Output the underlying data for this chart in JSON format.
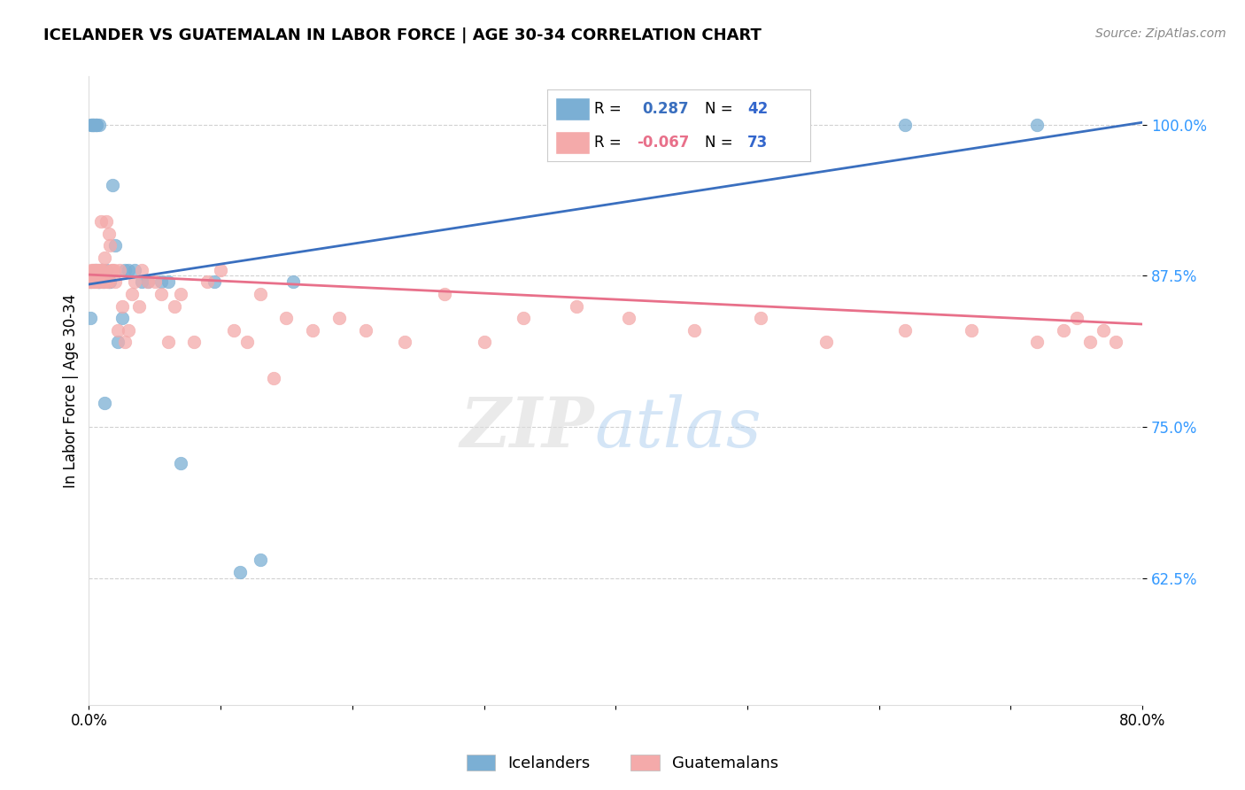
{
  "title": "ICELANDER VS GUATEMALAN IN LABOR FORCE | AGE 30-34 CORRELATION CHART",
  "source": "Source: ZipAtlas.com",
  "ylabel": "In Labor Force | Age 30-34",
  "xlim": [
    0.0,
    0.8
  ],
  "ylim": [
    0.52,
    1.04
  ],
  "xticks": [
    0.0,
    0.1,
    0.2,
    0.3,
    0.4,
    0.5,
    0.6,
    0.7,
    0.8
  ],
  "xticklabels": [
    "0.0%",
    "",
    "",
    "",
    "",
    "",
    "",
    "",
    "80.0%"
  ],
  "yticks": [
    0.625,
    0.75,
    0.875,
    1.0
  ],
  "yticklabels": [
    "62.5%",
    "75.0%",
    "87.5%",
    "100.0%"
  ],
  "blue_R": 0.287,
  "blue_N": 42,
  "pink_R": -0.067,
  "pink_N": 73,
  "blue_color": "#7BAFD4",
  "pink_color": "#F4AAAA",
  "blue_line_color": "#3A6FBF",
  "pink_line_color": "#E8708A",
  "icelander_x": [
    0.001,
    0.001,
    0.002,
    0.002,
    0.003,
    0.003,
    0.004,
    0.004,
    0.005,
    0.005,
    0.006,
    0.006,
    0.007,
    0.007,
    0.008,
    0.008,
    0.009,
    0.01,
    0.01,
    0.011,
    0.012,
    0.013,
    0.015,
    0.016,
    0.018,
    0.02,
    0.022,
    0.025,
    0.027,
    0.03,
    0.035,
    0.04,
    0.045,
    0.055,
    0.06,
    0.07,
    0.095,
    0.115,
    0.13,
    0.155,
    0.62,
    0.72
  ],
  "icelander_y": [
    0.87,
    0.84,
    1.0,
    1.0,
    1.0,
    1.0,
    1.0,
    0.87,
    0.88,
    1.0,
    1.0,
    1.0,
    0.87,
    0.87,
    1.0,
    0.87,
    0.88,
    0.88,
    0.88,
    0.87,
    0.77,
    0.88,
    0.87,
    0.87,
    0.95,
    0.9,
    0.82,
    0.84,
    0.88,
    0.88,
    0.88,
    0.87,
    0.87,
    0.87,
    0.87,
    0.72,
    0.87,
    0.63,
    0.64,
    0.87,
    1.0,
    1.0
  ],
  "guatemalan_x": [
    0.001,
    0.001,
    0.002,
    0.002,
    0.003,
    0.003,
    0.004,
    0.005,
    0.005,
    0.006,
    0.006,
    0.007,
    0.008,
    0.008,
    0.009,
    0.009,
    0.01,
    0.01,
    0.011,
    0.012,
    0.012,
    0.013,
    0.014,
    0.015,
    0.015,
    0.016,
    0.017,
    0.018,
    0.019,
    0.02,
    0.022,
    0.023,
    0.025,
    0.027,
    0.03,
    0.033,
    0.035,
    0.038,
    0.04,
    0.045,
    0.05,
    0.055,
    0.06,
    0.065,
    0.07,
    0.08,
    0.09,
    0.1,
    0.11,
    0.12,
    0.13,
    0.14,
    0.15,
    0.17,
    0.19,
    0.21,
    0.24,
    0.27,
    0.3,
    0.33,
    0.37,
    0.41,
    0.46,
    0.51,
    0.56,
    0.62,
    0.67,
    0.72,
    0.74,
    0.75,
    0.76,
    0.77,
    0.78
  ],
  "guatemalan_y": [
    0.87,
    0.87,
    0.88,
    0.87,
    0.88,
    0.87,
    0.88,
    0.88,
    0.87,
    0.88,
    0.87,
    0.88,
    0.88,
    0.87,
    0.92,
    0.88,
    0.87,
    0.88,
    0.87,
    0.88,
    0.89,
    0.92,
    0.87,
    0.91,
    0.87,
    0.9,
    0.88,
    0.88,
    0.88,
    0.87,
    0.83,
    0.88,
    0.85,
    0.82,
    0.83,
    0.86,
    0.87,
    0.85,
    0.88,
    0.87,
    0.87,
    0.86,
    0.82,
    0.85,
    0.86,
    0.82,
    0.87,
    0.88,
    0.83,
    0.82,
    0.86,
    0.79,
    0.84,
    0.83,
    0.84,
    0.83,
    0.82,
    0.86,
    0.82,
    0.84,
    0.85,
    0.84,
    0.83,
    0.84,
    0.82,
    0.83,
    0.83,
    0.82,
    0.83,
    0.84,
    0.82,
    0.83,
    0.82
  ]
}
